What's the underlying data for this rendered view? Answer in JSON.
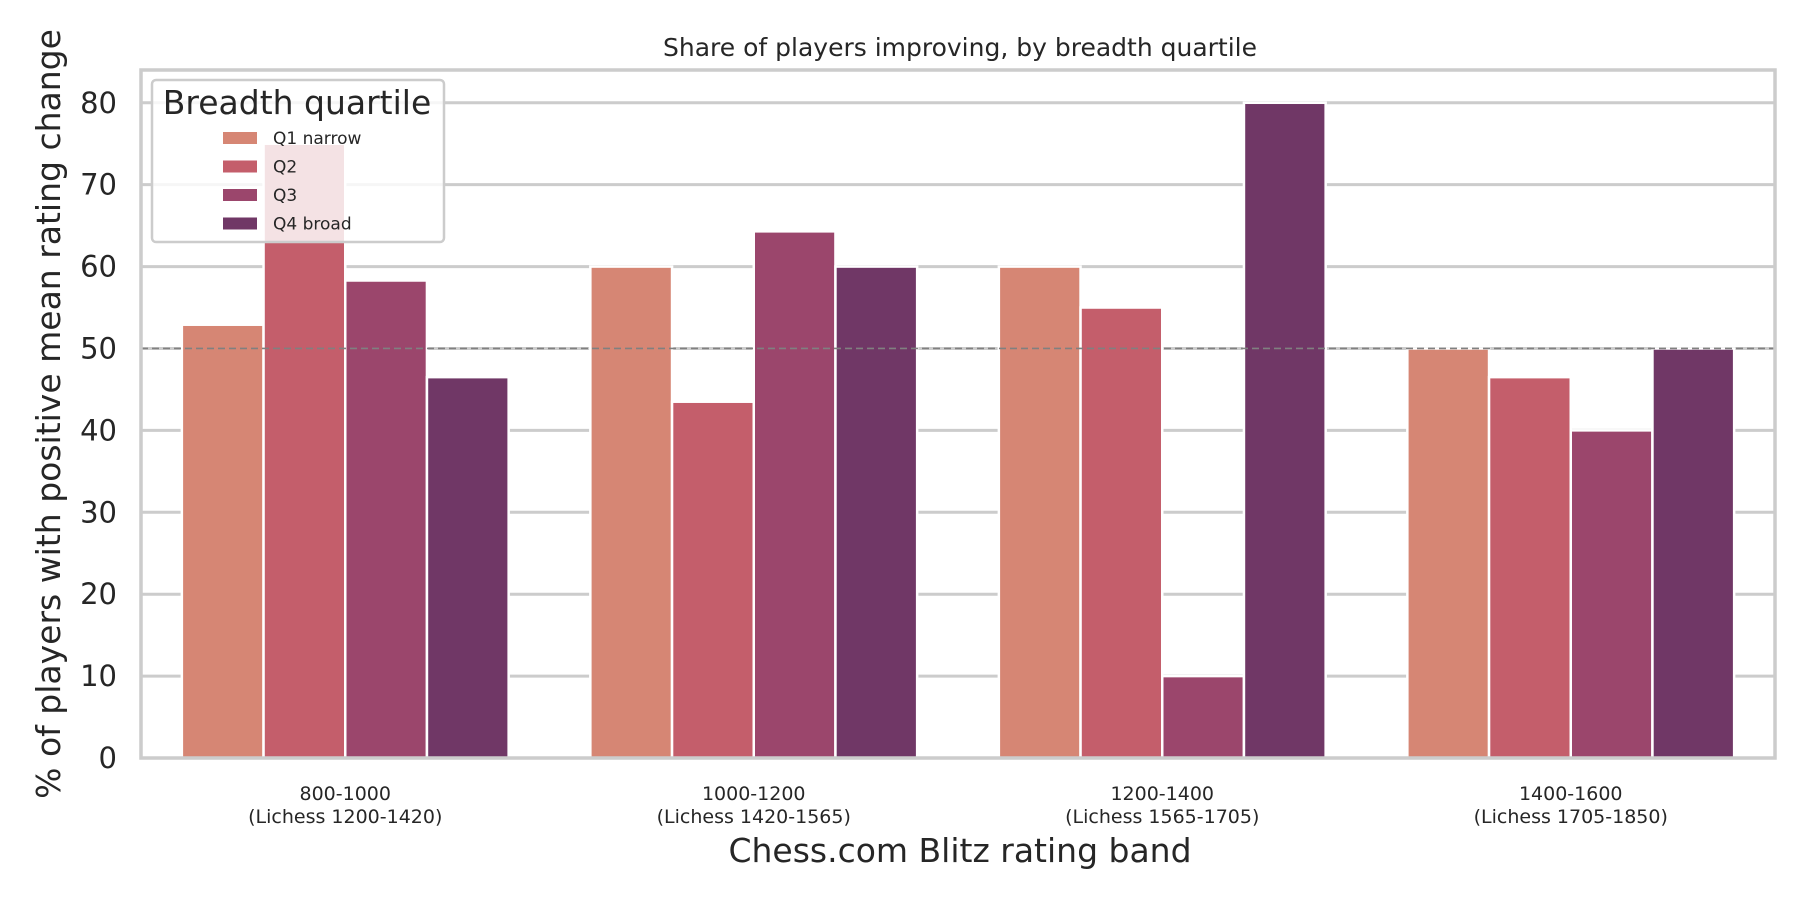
{
  "chart_data": {
    "type": "bar",
    "title": "Share of players improving, by breadth quartile",
    "xlabel": "Chess.com Blitz rating band",
    "ylabel": "% of players with positive mean rating change",
    "ylim": [
      0,
      84
    ],
    "yticks": [
      "0",
      "10",
      "20",
      "30",
      "40",
      "50",
      "60",
      "70",
      "80"
    ],
    "categories": [
      {
        "line1": "800-1000",
        "line2": "(Lichess 1200-1420)"
      },
      {
        "line1": "1000-1200",
        "line2": "(Lichess 1420-1565)"
      },
      {
        "line1": "1200-1400",
        "line2": "(Lichess 1565-1705)"
      },
      {
        "line1": "1400-1600",
        "line2": "(Lichess 1705-1850)"
      }
    ],
    "series": [
      {
        "name": "Q1 narrow",
        "color": "#d68674",
        "values": [
          52.9,
          60,
          60,
          50
        ]
      },
      {
        "name": "Q2",
        "color": "#c45e6b",
        "values": [
          75,
          43.5,
          55,
          46.5
        ]
      },
      {
        "name": "Q3",
        "color": "#9b466c",
        "values": [
          58.3,
          64.3,
          10,
          40
        ]
      },
      {
        "name": "Q4 broad",
        "color": "#703766",
        "values": [
          46.5,
          60,
          80,
          50
        ]
      }
    ],
    "reference_line": 50,
    "grid": true,
    "legend": {
      "title": "Breadth quartile",
      "placement": "upper-left"
    }
  }
}
